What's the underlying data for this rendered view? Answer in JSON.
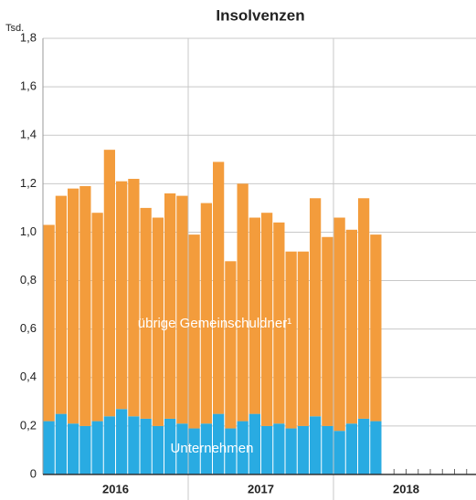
{
  "chart_data": {
    "type": "stacked_bar",
    "title": "Insolvenzen",
    "y_unit": "Tsd.",
    "categories": [
      null,
      null,
      null,
      null,
      null,
      null,
      null,
      null,
      null,
      null,
      null,
      null,
      null,
      null,
      null,
      null,
      null,
      null,
      null,
      null,
      null,
      null,
      null,
      null,
      null,
      null,
      null,
      null
    ],
    "year_labels": [
      "2016",
      "2017",
      "2018"
    ],
    "series": [
      {
        "name": "Unternehmen",
        "color": "#29abe2",
        "values": [
          0.22,
          0.25,
          0.21,
          0.2,
          0.22,
          0.24,
          0.27,
          0.24,
          0.23,
          0.2,
          0.23,
          0.21,
          0.19,
          0.21,
          0.25,
          0.19,
          0.22,
          0.25,
          0.2,
          0.21,
          0.19,
          0.2,
          0.24,
          0.2,
          0.18,
          0.21,
          0.23,
          0.22
        ]
      },
      {
        "name": "übrige Gemeinschuldner¹",
        "color": "#f39c3c",
        "values": [
          0.81,
          0.9,
          0.97,
          0.99,
          0.86,
          1.1,
          0.94,
          0.98,
          0.87,
          0.86,
          0.93,
          0.94,
          0.8,
          0.91,
          1.04,
          0.69,
          0.98,
          0.81,
          0.88,
          0.83,
          0.73,
          0.72,
          0.9,
          0.78,
          0.88,
          0.8,
          0.91,
          0.77
        ]
      }
    ],
    "ylim": [
      0,
      1.8
    ],
    "yticks": [
      0,
      {
        "value": 0.2,
        "label": "0,2"
      },
      {
        "value": 0.4,
        "label": "0,4"
      },
      {
        "value": 0.6,
        "label": "0,6"
      },
      {
        "value": 0.8,
        "label": "0,8"
      },
      {
        "value": 1.0,
        "label": "1,0"
      },
      {
        "value": 1.2,
        "label": "1,2"
      },
      {
        "value": 1.4,
        "label": "1,4"
      },
      {
        "value": 1.6,
        "label": "1,6"
      },
      {
        "value": 1.8,
        "label": "1,8"
      }
    ],
    "grid": true
  }
}
